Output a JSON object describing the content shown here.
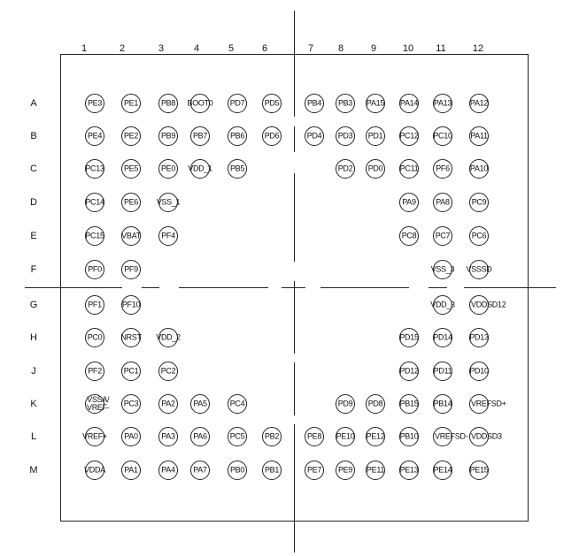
{
  "columns": [
    "1",
    "2",
    "3",
    "4",
    "5",
    "6",
    "7",
    "8",
    "9",
    "10",
    "11",
    "12"
  ],
  "rows": [
    "A",
    "B",
    "C",
    "D",
    "E",
    "F",
    "G",
    "H",
    "J",
    "K",
    "L",
    "M"
  ],
  "pins": [
    [
      "PE3",
      "PE1",
      "PB8",
      "BOOT0",
      "PD7",
      "PD5",
      "PB4",
      "PB3",
      "PA15",
      "PA14",
      "PA13",
      "PA12"
    ],
    [
      "PE4",
      "PE2",
      "PB9",
      "PB7",
      "PB6",
      "PD6",
      "PD4",
      "PD3",
      "PD1",
      "PC12",
      "PC10",
      "PA11"
    ],
    [
      "PC13",
      "PE5",
      "PE0",
      "VDD_1",
      "PB5",
      "",
      "",
      "PD2",
      "PD0",
      "PC11",
      "PF6",
      "PA10"
    ],
    [
      "PC14",
      "PE6",
      "VSS_1",
      "",
      "",
      "",
      "",
      "",
      "",
      "PA9",
      "PA8",
      "PC9"
    ],
    [
      "PC15",
      "VBAT",
      "PF4",
      "",
      "",
      "",
      "",
      "",
      "",
      "PC8",
      "PC7",
      "PC6"
    ],
    [
      "PF0",
      "PF9",
      "",
      "",
      "",
      "",
      "",
      "",
      "",
      "",
      "VSS_3",
      "VSSSD"
    ],
    [
      "PF1",
      "PF10",
      "",
      "",
      "",
      "",
      "",
      "",
      "",
      "",
      "VDD_3",
      "VDDSD12"
    ],
    [
      "PC0",
      "NRST",
      "VDD_2",
      "",
      "",
      "",
      "",
      "",
      "",
      "PD15",
      "PD14",
      "PD13"
    ],
    [
      "PF2",
      "PC1",
      "PC2",
      "",
      "",
      "",
      "",
      "",
      "",
      "PD12",
      "PD11",
      "PD10"
    ],
    [
      "VSSA/\nVREF-",
      "PC3",
      "PA2",
      "PA5",
      "PC4",
      "",
      "",
      "PD9",
      "PD8",
      "PB15",
      "PB14",
      "VREFSD+"
    ],
    [
      "VREF+",
      "PA0",
      "PA3",
      "PA6",
      "PC5",
      "PB2",
      "PE8",
      "PE10",
      "PE12",
      "PB10",
      "VREFSD-",
      "VDDSD3"
    ],
    [
      "VDDA",
      "PA1",
      "PA4",
      "PA7",
      "PB0",
      "PB1",
      "PE7",
      "PE9",
      "PE11",
      "PE13",
      "PE14",
      "PE15"
    ]
  ]
}
